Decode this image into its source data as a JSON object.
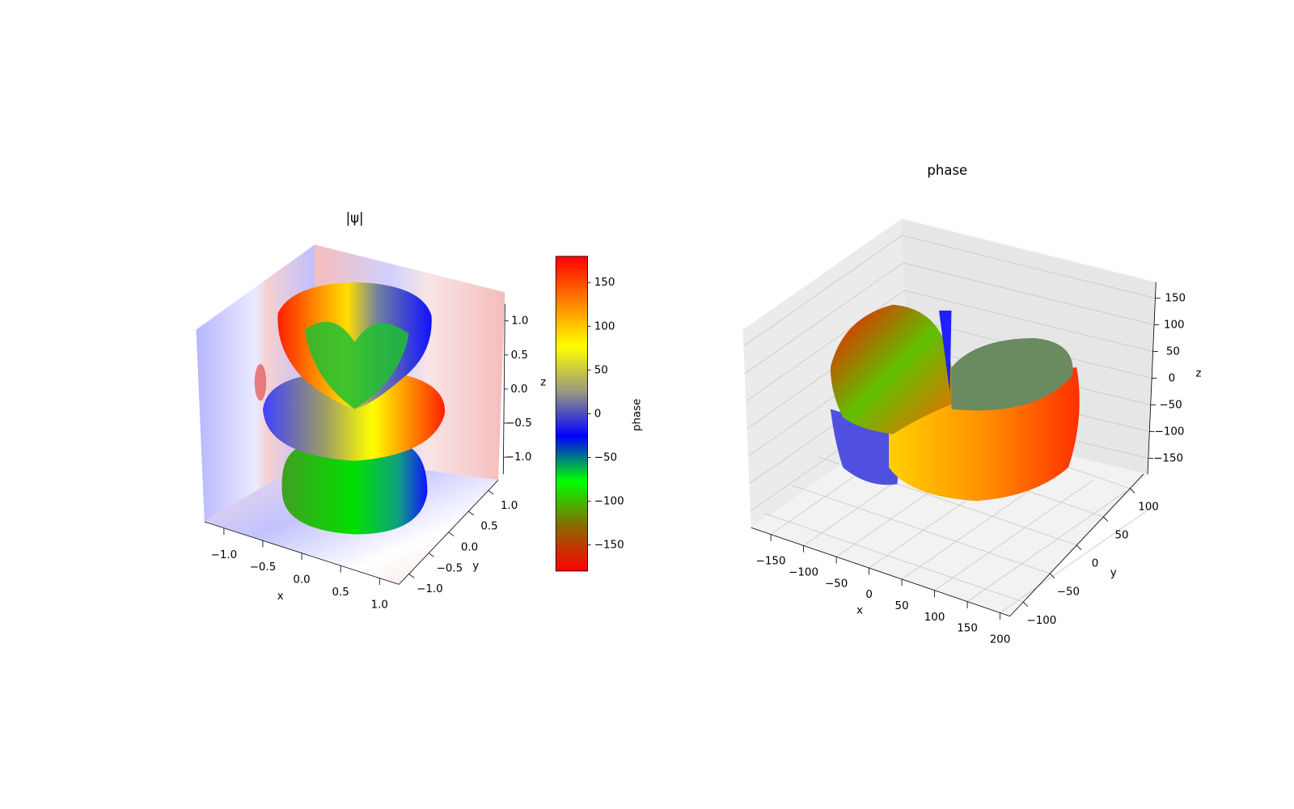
{
  "chart_data": [
    {
      "type": "surface3d",
      "title": "|ψ|",
      "x_label": "x",
      "y_label": "y",
      "z_label": "z",
      "xlim": [
        -1.25,
        1.25
      ],
      "ylim": [
        -1.25,
        1.25
      ],
      "zlim": [
        -1.25,
        1.25
      ],
      "xticks": [
        {
          "value": -1,
          "label": "−1.0"
        },
        {
          "value": -0.5,
          "label": "−0.5"
        },
        {
          "value": 0,
          "label": "0.0"
        },
        0.5,
        {
          "value": 1,
          "label": "1.0"
        }
      ],
      "yticks": [
        {
          "value": -1,
          "label": "−1.0"
        },
        {
          "value": -0.5,
          "label": "−0.5"
        },
        {
          "value": 0,
          "label": "0.0"
        },
        0.5,
        {
          "value": 1,
          "label": "1.0"
        }
      ],
      "zticks": [
        {
          "value": -1,
          "label": "−1.0"
        },
        {
          "value": -0.5,
          "label": "−0.5"
        },
        {
          "value": 0,
          "label": "0.0"
        },
        0.5,
        {
          "value": 1,
          "label": "1.0"
        }
      ],
      "grid": false,
      "colorbar": {
        "label": "phase",
        "lim": [
          -180,
          180
        ],
        "ticks": [
          {
            "value": -150,
            "label": "−150"
          },
          {
            "value": -100,
            "label": "−100"
          },
          {
            "value": -50,
            "label": "−50"
          },
          0,
          50,
          100,
          150
        ],
        "colors": [
          "#ff0000",
          "#8a6a00",
          "#00ff00",
          "#0000ff",
          "#9a9a80",
          "#ffff00",
          "#ff8000",
          "#ff0000"
        ]
      }
    },
    {
      "type": "surface3d",
      "title": "phase",
      "x_label": "x",
      "y_label": "y",
      "z_label": "z",
      "xlim": [
        -180,
        215
      ],
      "ylim": [
        -125,
        125
      ],
      "zlim": [
        -180,
        180
      ],
      "xticks": [
        {
          "value": -150,
          "label": "−150"
        },
        {
          "value": -100,
          "label": "−100"
        },
        {
          "value": -50,
          "label": "−50"
        },
        0,
        50,
        100,
        150,
        200
      ],
      "yticks": [
        {
          "value": -100,
          "label": "−100"
        },
        {
          "value": -50,
          "label": "−50"
        },
        0,
        50,
        100
      ],
      "zticks": [
        {
          "value": -150,
          "label": "−150"
        },
        {
          "value": -100,
          "label": "−100"
        },
        {
          "value": -50,
          "label": "−50"
        },
        0,
        50,
        100,
        150
      ],
      "grid": true
    }
  ]
}
